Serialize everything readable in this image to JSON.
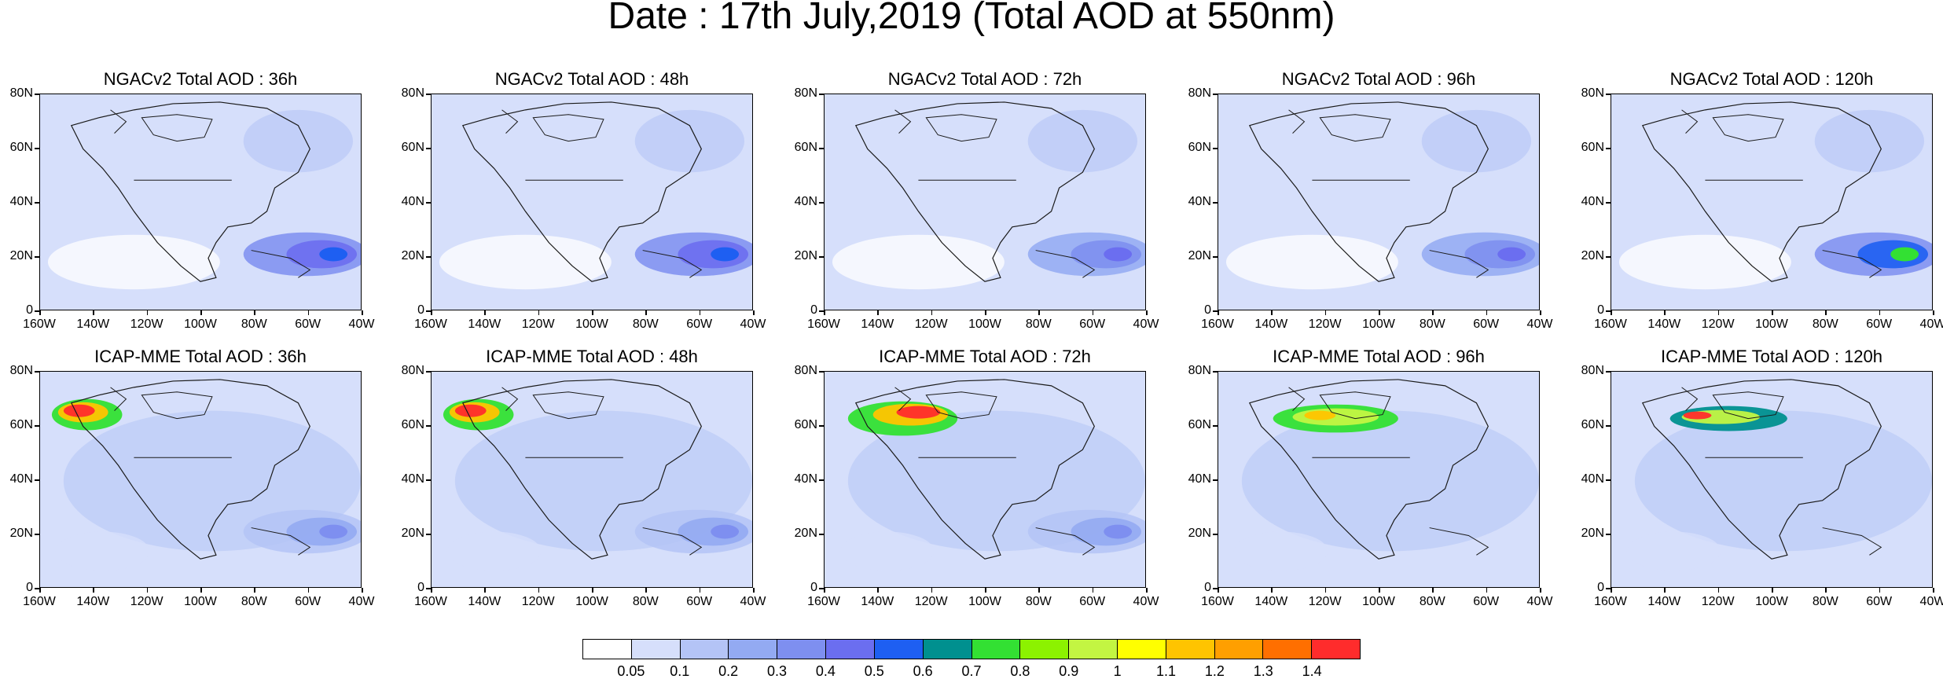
{
  "title": "Date : 17th July,2019 (Total AOD at 550nm)",
  "lat_labels": [
    "80N",
    "60N",
    "40N",
    "20N",
    "0"
  ],
  "lon_labels": [
    "160W",
    "140W",
    "120W",
    "100W",
    "80W",
    "60W",
    "40W"
  ],
  "panels": [
    {
      "title": "NGACv2 Total AOD : 36h",
      "plume": "none",
      "dust": "strong"
    },
    {
      "title": "NGACv2 Total AOD : 48h",
      "plume": "none",
      "dust": "strong"
    },
    {
      "title": "NGACv2 Total AOD : 72h",
      "plume": "none",
      "dust": "medium"
    },
    {
      "title": "NGACv2 Total AOD : 96h",
      "plume": "none",
      "dust": "medium"
    },
    {
      "title": "NGACv2 Total AOD : 120h",
      "plume": "none",
      "dust": "peak"
    },
    {
      "title": "ICAP-MME Total AOD : 36h",
      "plume": "alaska",
      "dust": "weak"
    },
    {
      "title": "ICAP-MME Total AOD : 48h",
      "plume": "alaska",
      "dust": "weak"
    },
    {
      "title": "ICAP-MME Total AOD : 72h",
      "plume": "yukon",
      "dust": "weak"
    },
    {
      "title": "ICAP-MME Total AOD : 96h",
      "plume": "canada",
      "dust": "none"
    },
    {
      "title": "ICAP-MME Total AOD : 120h",
      "plume": "canada-east",
      "dust": "none"
    }
  ],
  "colorbar": {
    "colors": [
      "#ffffff",
      "#d6dffb",
      "#b4c4f6",
      "#93aaf2",
      "#7e8ff0",
      "#6b6ef0",
      "#1e5ff2",
      "#00908f",
      "#33e033",
      "#8cf200",
      "#c3f542",
      "#ffff00",
      "#ffc400",
      "#ff9f00",
      "#ff6f00",
      "#ff2c2c"
    ],
    "labels": [
      "0.05",
      "0.1",
      "0.2",
      "0.3",
      "0.4",
      "0.5",
      "0.6",
      "0.7",
      "0.8",
      "0.9",
      "1",
      "1.1",
      "1.2",
      "1.3",
      "1.4"
    ]
  }
}
